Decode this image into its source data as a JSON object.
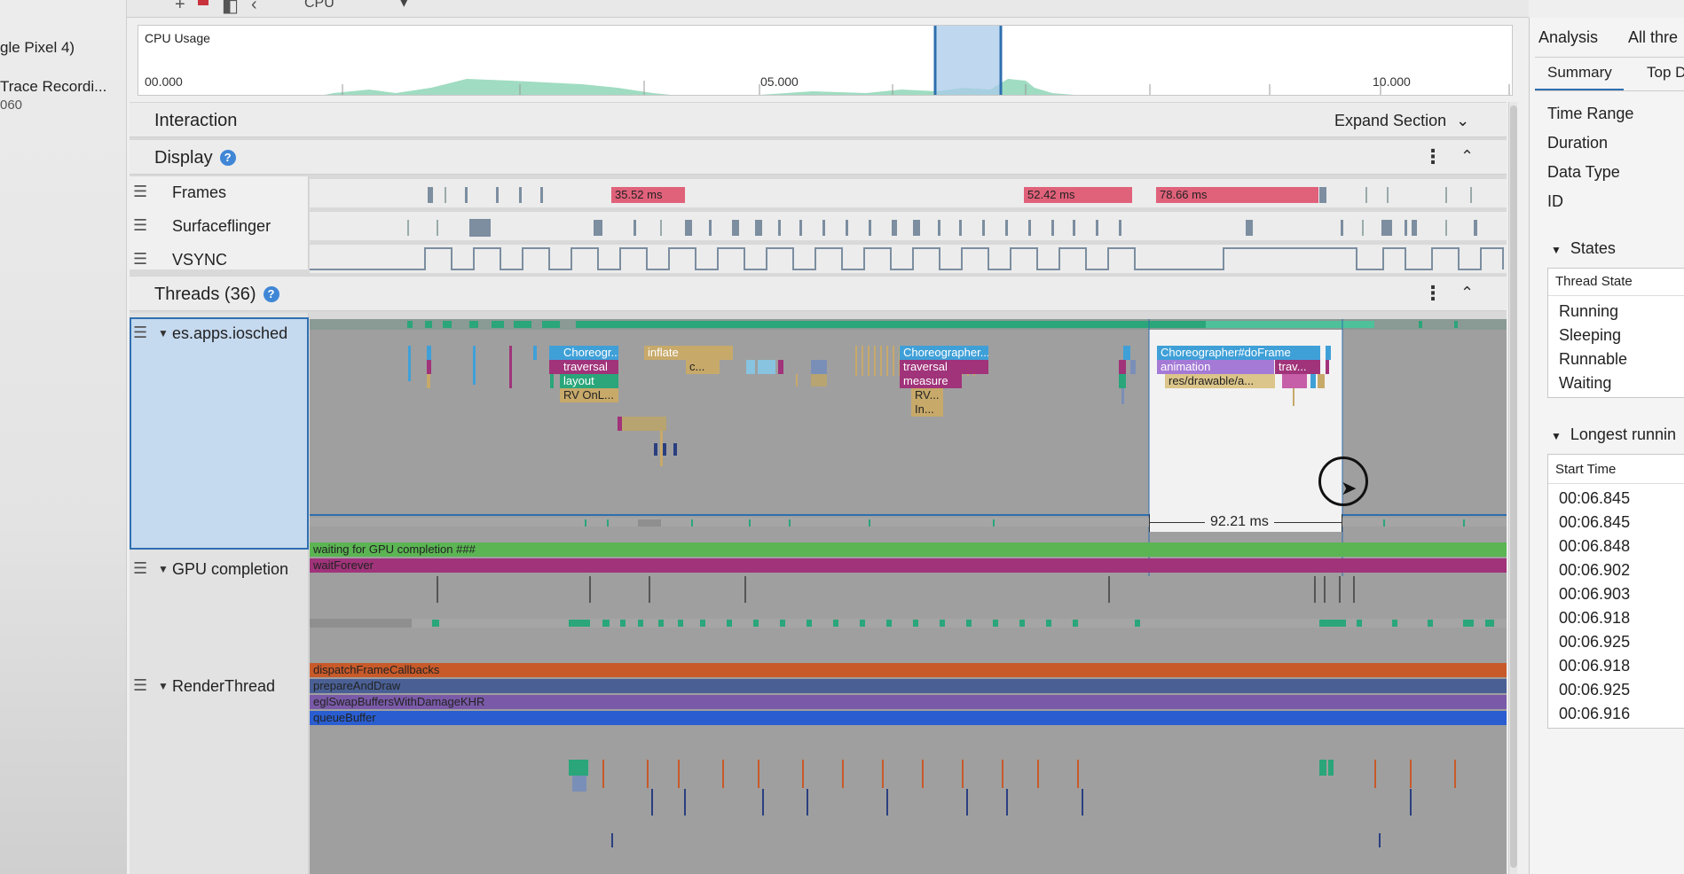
{
  "sidebar": {
    "device": "gle Pixel 4)",
    "recording_title": "Trace Recordi...",
    "recording_sub": "060"
  },
  "toolbar": {
    "cpu_select": "CPU"
  },
  "cpu_usage": {
    "title": "CPU Usage",
    "ticks": [
      "00.000",
      "05.000",
      "10.000"
    ]
  },
  "sections": {
    "interaction": {
      "label": "Interaction",
      "expand_label": "Expand Section"
    },
    "display": {
      "label": "Display",
      "help": "?"
    },
    "threads": {
      "label": "Threads (36)",
      "help": "?"
    }
  },
  "display_tracks": {
    "frames": {
      "label": "Frames",
      "slices": [
        "35.52 ms",
        "52.42 ms",
        "78.66 ms"
      ]
    },
    "surfaceflinger": {
      "label": "Surfaceflinger"
    },
    "vsync": {
      "label": "VSYNC"
    }
  },
  "threads": {
    "main_thread": {
      "label": "es.apps.iosched",
      "slices": [
        "Choreogr...",
        "traversal",
        "layout",
        "RV OnL...",
        "inflate",
        "c...",
        "Choreographer...",
        "traversal",
        "measure",
        "RV...",
        "In...",
        "Choreographer#doFrame",
        "animation",
        "trav...",
        "res/drawable/a..."
      ]
    },
    "gpu_completion": {
      "label": "GPU completion",
      "slices": [
        "waiting for GPU completion ###",
        "waitForever"
      ]
    },
    "render_thread": {
      "label": "RenderThread",
      "slices": [
        "dispatchFrameCallbacks",
        "prepareAndDraw",
        "eglSwapBuffersWithDamageKHR",
        "queueBuffer"
      ]
    },
    "selection_duration": "92.21 ms"
  },
  "analysis_panel": {
    "tabs": [
      "Analysis",
      "All thre"
    ],
    "subtabs": [
      "Summary",
      "Top D"
    ],
    "summary_rows": [
      "Time Range",
      "Duration",
      "Data Type",
      "ID"
    ],
    "states_title": "States",
    "states_header": "Thread State",
    "states": [
      "Running",
      "Sleeping",
      "Runnable",
      "Waiting"
    ],
    "longest_title": "Longest runnin",
    "longest_header": "Start Time",
    "longest_times": [
      "00:06.845",
      "00:06.845",
      "00:06.848",
      "00:06.902",
      "00:06.903",
      "00:06.918",
      "00:06.925",
      "00:06.918",
      "00:06.925",
      "00:06.916"
    ]
  },
  "colors": {
    "frame_jank": "#e0617a",
    "cpu_area": "#8fd6b6",
    "selection": "#2f6fb0",
    "blue_slice": "#3fa0d8",
    "magenta_slice": "#a0337a",
    "teal_slice": "#2aa67a",
    "green_slice": "#5bb553",
    "purple_slice": "#7a4fa0",
    "orange_slice": "#c85a2a"
  },
  "icons": [
    "plus-icon",
    "stop-icon",
    "layout-icon",
    "back-icon",
    "chevron-down-icon",
    "help-icon",
    "kebab-icon",
    "chevron-up-icon",
    "hamburger-icon",
    "triangle-down-icon",
    "cursor-icon"
  ]
}
